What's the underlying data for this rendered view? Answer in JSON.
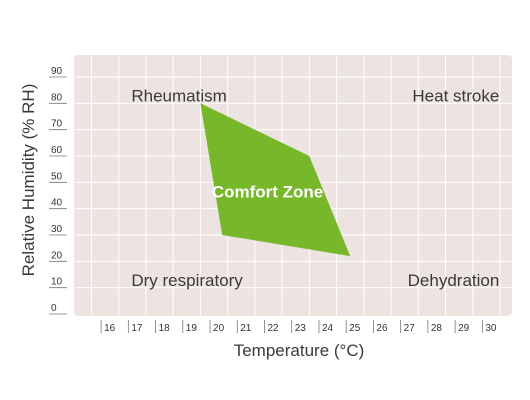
{
  "chart_data": {
    "type": "area",
    "xlabel": "Temperature (°C)",
    "ylabel": "Relative Humidity (% RH)",
    "xlim": [
      15,
      31
    ],
    "ylim": [
      0,
      90
    ],
    "x_ticks": [
      16,
      17,
      18,
      19,
      20,
      21,
      22,
      23,
      24,
      25,
      26,
      27,
      28,
      29,
      30
    ],
    "x_tick_labels": [
      "16",
      "17",
      "18",
      "19",
      "20",
      "21",
      "22",
      "23",
      "24",
      "25",
      "26",
      "27",
      "28",
      "29",
      "30"
    ],
    "y_ticks": [
      0,
      10,
      20,
      30,
      40,
      50,
      60,
      70,
      80,
      90
    ],
    "y_tick_labels": [
      "0",
      "10",
      "20",
      "30",
      "40",
      "50",
      "60",
      "70",
      "80",
      "90"
    ],
    "grid": true,
    "plot_background": "#ede4e1",
    "grid_color": "#ffffff",
    "series": [
      {
        "name": "Comfort Zone",
        "color": "#77b82a",
        "points": [
          {
            "x": 19.5,
            "y": 80
          },
          {
            "x": 23.5,
            "y": 60
          },
          {
            "x": 25,
            "y": 22
          },
          {
            "x": 20.3,
            "y": 30
          }
        ]
      }
    ],
    "annotations": [
      {
        "text": "Rheumatism",
        "x": 17,
        "y": 83
      },
      {
        "text": "Heat stroke",
        "x": 30,
        "y": 83
      },
      {
        "text": "Dry respiratory",
        "x": 17,
        "y": 13
      },
      {
        "text": "Dehydration",
        "x": 30,
        "y": 13
      }
    ]
  }
}
